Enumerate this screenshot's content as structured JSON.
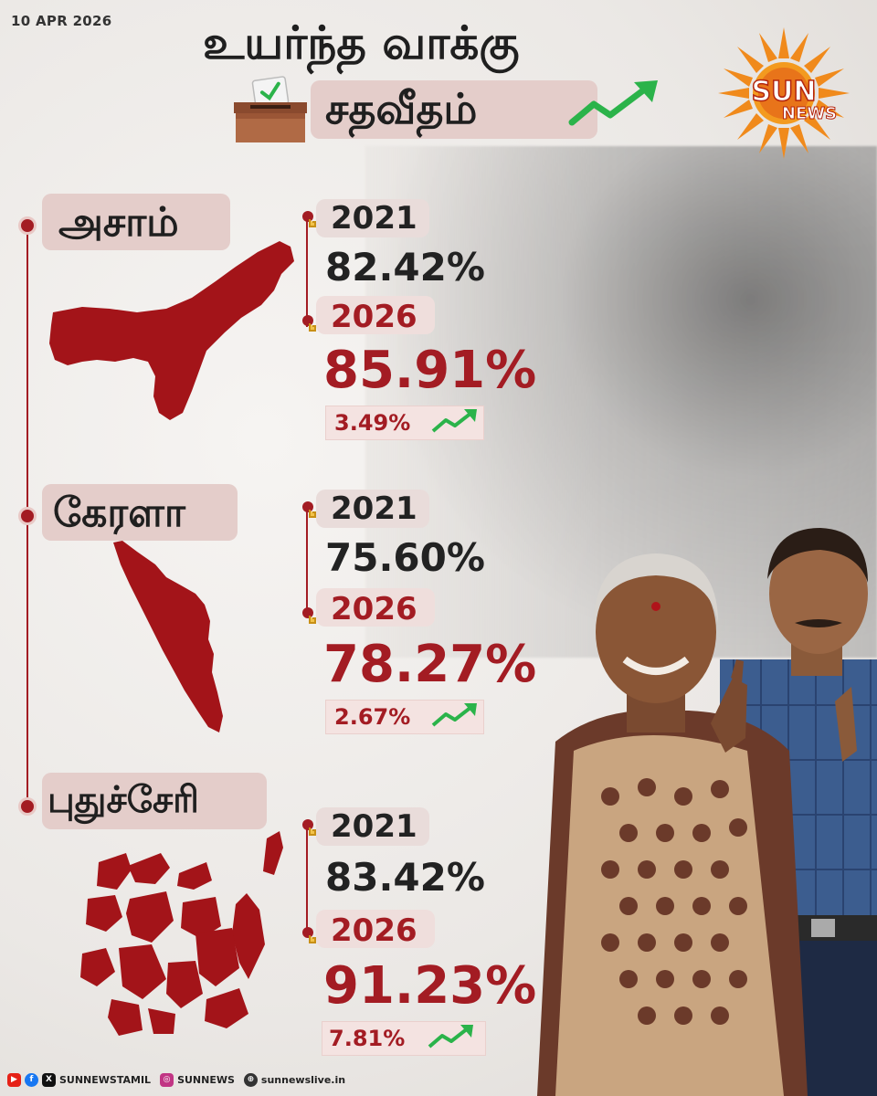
{
  "date": "10 APR 2026",
  "title": {
    "line1": "உயர்ந்த வாக்கு",
    "line2": "சதவீதம்"
  },
  "logo": {
    "line1": "SUN",
    "line2": "NEWS"
  },
  "states": [
    {
      "name": "அசாம்",
      "year_old": "2021",
      "pct_old": "82.42%",
      "year_new": "2026",
      "pct_new": "85.91%",
      "increase": "3.49%"
    },
    {
      "name": "கேரளா",
      "year_old": "2021",
      "pct_old": "75.60%",
      "year_new": "2026",
      "pct_new": "78.27%",
      "increase": "2.67%"
    },
    {
      "name": "புதுச்சேரி",
      "year_old": "2021",
      "pct_old": "83.42%",
      "year_new": "2026",
      "pct_new": "91.23%",
      "increase": "7.81%"
    }
  ],
  "footer": {
    "handle": "SUNNEWSTAMIL",
    "instagram": "SUNNEWS",
    "website": "sunnewslive.in"
  },
  "colors": {
    "accent_red": "#a31c23",
    "label_bg": "#e4cdca",
    "arrow_green": "#2bb34a",
    "logo_orange": "#f08a1c"
  },
  "icons": [
    "ballot-box-icon",
    "trend-up-arrow-icon",
    "hand-pointer-icon",
    "youtube-icon",
    "facebook-icon",
    "x-icon",
    "instagram-icon",
    "globe-icon"
  ]
}
